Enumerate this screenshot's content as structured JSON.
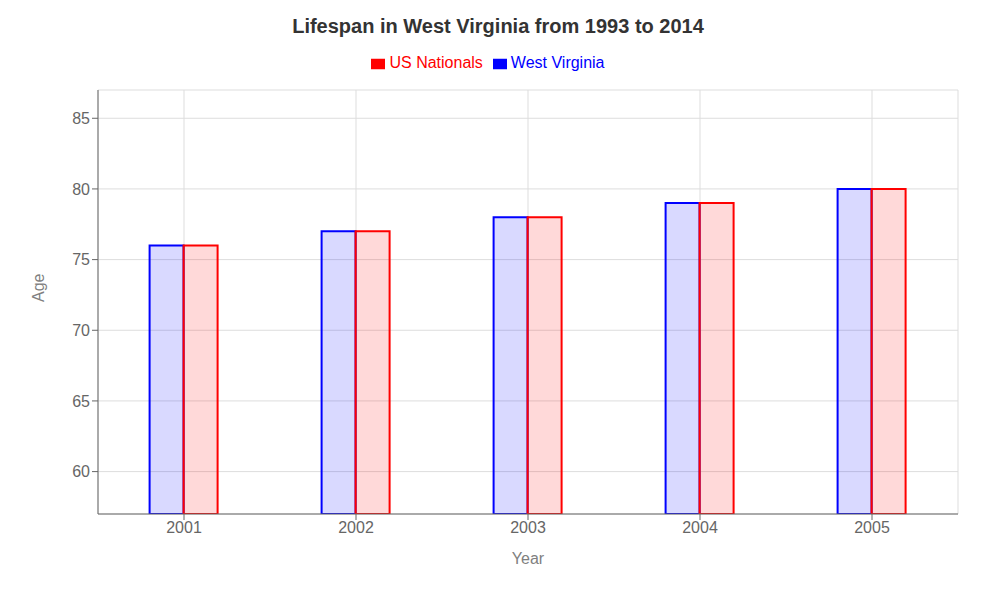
{
  "chart_data": {
    "type": "bar",
    "title": "Lifespan in West Virginia from 1993 to 2014",
    "x_label": "Year",
    "y_label": "Age",
    "categories": [
      "2001",
      "2002",
      "2003",
      "2004",
      "2005"
    ],
    "series": [
      {
        "name": "West Virginia",
        "color": "#0000ff",
        "values": [
          76,
          77,
          78,
          79,
          80
        ]
      },
      {
        "name": "US Nationals",
        "color": "#ff0000",
        "values": [
          76,
          77,
          78,
          79,
          80
        ]
      }
    ],
    "ylim": [
      57,
      87
    ],
    "yticks": [
      60,
      65,
      70,
      75,
      80,
      85
    ],
    "grid": true,
    "legend": "top"
  }
}
